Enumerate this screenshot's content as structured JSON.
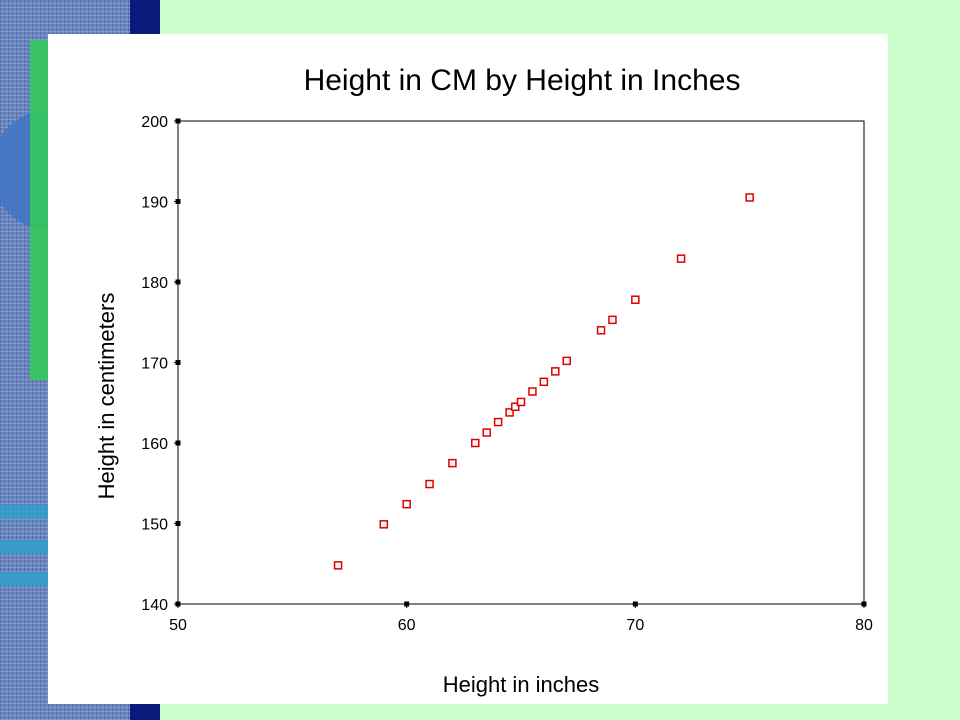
{
  "chart_data": {
    "type": "scatter",
    "title": "Height in CM by Height in Inches",
    "xlabel": "Height in inches",
    "ylabel": "Height in centimeters",
    "xlim": [
      50,
      80
    ],
    "ylim": [
      140,
      200
    ],
    "xticks": [
      50,
      60,
      70,
      80
    ],
    "yticks": [
      140,
      150,
      160,
      170,
      180,
      190,
      200
    ],
    "grid": false,
    "marker_color": "#e00000",
    "points": [
      {
        "x": 57,
        "y": 144.8
      },
      {
        "x": 59,
        "y": 149.9
      },
      {
        "x": 60,
        "y": 152.4
      },
      {
        "x": 61,
        "y": 154.9
      },
      {
        "x": 62,
        "y": 157.5
      },
      {
        "x": 63,
        "y": 160.0
      },
      {
        "x": 63.5,
        "y": 161.3
      },
      {
        "x": 64,
        "y": 162.6
      },
      {
        "x": 64.5,
        "y": 163.8
      },
      {
        "x": 64.75,
        "y": 164.5
      },
      {
        "x": 65,
        "y": 165.1
      },
      {
        "x": 65.5,
        "y": 166.4
      },
      {
        "x": 66,
        "y": 167.6
      },
      {
        "x": 66.5,
        "y": 168.9
      },
      {
        "x": 67,
        "y": 170.2
      },
      {
        "x": 68.5,
        "y": 174.0
      },
      {
        "x": 69,
        "y": 175.3
      },
      {
        "x": 70,
        "y": 177.8
      },
      {
        "x": 72,
        "y": 182.9
      },
      {
        "x": 75,
        "y": 190.5
      }
    ]
  }
}
